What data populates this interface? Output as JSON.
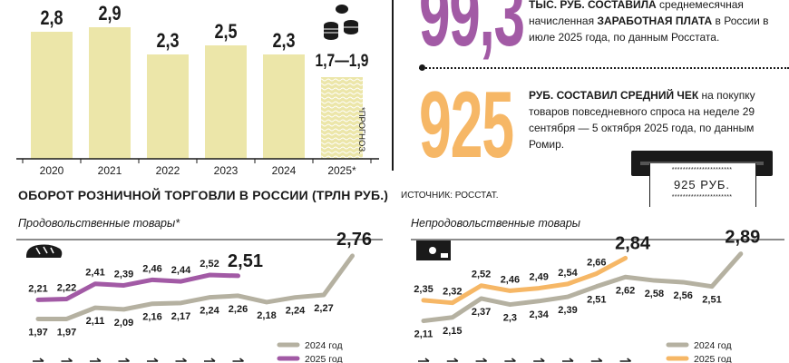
{
  "colors": {
    "bar": "#ece6a9",
    "purple": "#a25aa5",
    "orange": "#f6b766",
    "gray": "#b5b1a1",
    "ink": "#1a1a1a"
  },
  "stat1": {
    "value": "99,3",
    "unit_lead": "ТЫС. РУБ. СОСТАВИЛА",
    "text": " среднемесячная начисленная ",
    "bold2": "заработная плата",
    "text2": " в России в июле 2025 года, по данным Росстата."
  },
  "stat2": {
    "value": "925",
    "unit_lead": "РУБ. СОСТАВИЛ СРЕДНИЙ ЧЕК",
    "text": " на покупку товаров повседневного спроса на неделе 29 сентября — 5 октября 2025 года, по данным Ромир."
  },
  "receipt": {
    "stars": "**********************",
    "amount": "925 РУБ.",
    "stars2": "**********************"
  },
  "forecast_note": "*ПРОГНОЗ.",
  "retail": {
    "title": "ОБОРОТ РОЗНИЧНОЙ ТОРГОВЛИ В РОССИИ (ТРЛН РУБ.)",
    "source": "ИСТОЧНИК: РОССТАТ."
  },
  "chart_data": [
    {
      "type": "bar",
      "categories": [
        "2020",
        "2021",
        "2022",
        "2023",
        "2024",
        "2025*"
      ],
      "values": [
        2.8,
        2.9,
        2.3,
        2.5,
        2.3,
        1.8
      ],
      "value_labels": [
        "2,8",
        "2,9",
        "2,3",
        "2,5",
        "2,3",
        "1,7—1,9"
      ],
      "ylim": [
        0,
        3.3
      ]
    },
    {
      "type": "line",
      "title": "Продовольственные товары*",
      "x_count": 12,
      "ylim": [
        1.85,
        2.85
      ],
      "series": [
        {
          "name": "2024 год",
          "values": [
            1.97,
            1.97,
            2.11,
            2.09,
            2.16,
            2.17,
            2.24,
            2.26,
            2.18,
            2.24,
            2.27,
            2.76
          ],
          "labels": [
            "1,97",
            "1,97",
            "2,11",
            "2,09",
            "2,16",
            "2,17",
            "2,24",
            "2,26",
            "2,18",
            "2,24",
            "2,27",
            "2,76"
          ]
        },
        {
          "name": "2025 год",
          "values": [
            2.21,
            2.22,
            2.41,
            2.39,
            2.46,
            2.44,
            2.52,
            2.51
          ],
          "labels": [
            "2,21",
            "2,22",
            "2,41",
            "2,39",
            "2,46",
            "2,44",
            "2,52",
            "2,51"
          ]
        }
      ]
    },
    {
      "type": "line",
      "title": "Непродовольственные товары",
      "x_count": 12,
      "ylim": [
        2.0,
        2.95
      ],
      "series": [
        {
          "name": "2024 год",
          "values": [
            2.11,
            2.15,
            2.37,
            2.3,
            2.34,
            2.39,
            2.51,
            2.62,
            2.58,
            2.56,
            2.51,
            2.89
          ],
          "labels": [
            "2,11",
            "2,15",
            "2,37",
            "2,3",
            "2,34",
            "2,39",
            "2,51",
            "2,62",
            "2,58",
            "2,56",
            "2,51",
            "2,89"
          ]
        },
        {
          "name": "2025 год",
          "values": [
            2.35,
            2.32,
            2.52,
            2.46,
            2.49,
            2.54,
            2.66,
            2.84
          ],
          "labels": [
            "2,35",
            "2,32",
            "2,52",
            "2,46",
            "2,49",
            "2,54",
            "2,66",
            "2,84"
          ]
        }
      ]
    }
  ]
}
